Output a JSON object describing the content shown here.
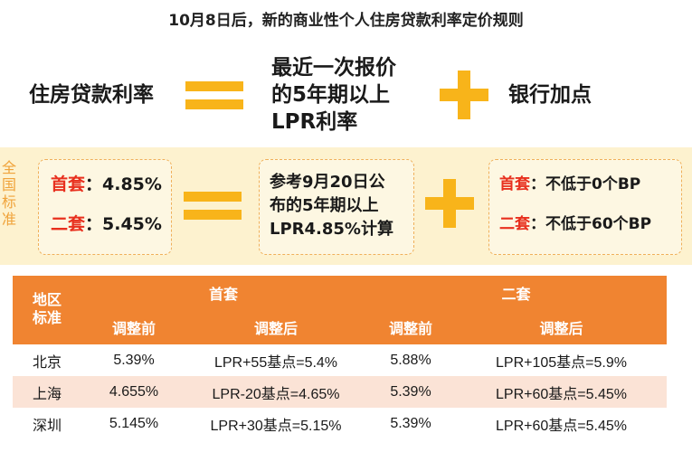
{
  "title": "10月8日后，新的商业性个人住房贷款利率定价规则",
  "formula": {
    "left": "住房贷款利率",
    "middle_lines": [
      "最近一次报价",
      "的5年期以上",
      "LPR利率"
    ],
    "right": "银行加点"
  },
  "standard": {
    "side_label": "全国标准",
    "left": {
      "first_label": "首套",
      "first_value": "：4.85%",
      "second_label": "二套",
      "second_value": "：5.45%"
    },
    "middle_lines": [
      "参考9月20日公",
      "布的5年期以上",
      "LPR4.85%计算"
    ],
    "right": {
      "first_label": "首套",
      "first_value": "：不低于0个BP",
      "second_label": "二套",
      "second_value": "：不低于60个BP"
    }
  },
  "table": {
    "region_header": "地区标准",
    "group_headers": [
      "首套",
      "二套"
    ],
    "sub_headers": [
      "调整前",
      "调整后",
      "调整前",
      "调整后"
    ],
    "rows": [
      [
        "北京",
        "5.39%",
        "LPR+55基点=5.4%",
        "5.88%",
        "LPR+105基点=5.9%"
      ],
      [
        "上海",
        "4.655%",
        "LPR-20基点=4.65%",
        "5.39%",
        "LPR+60基点=5.45%"
      ],
      [
        "深圳",
        "5.145%",
        "LPR+30基点=5.15%",
        "5.39%",
        "LPR+60基点=5.45%"
      ]
    ]
  },
  "colors": {
    "accent_orange": "#f08431",
    "yellow_symbol": "#f8b41a",
    "band_background": "#fdf2cf",
    "label_red": "#e8301e",
    "row_alt": "#fbe3d6"
  },
  "icons": [
    "equals-sign",
    "plus-sign"
  ]
}
